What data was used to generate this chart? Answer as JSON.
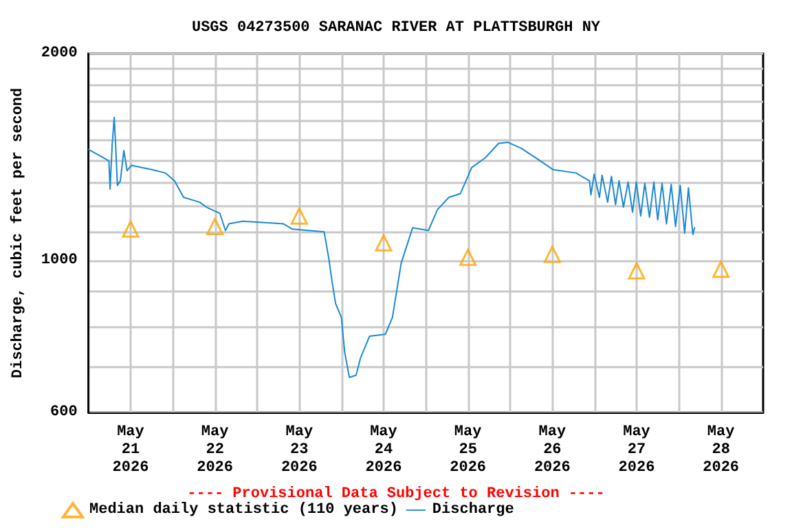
{
  "chart_data": {
    "type": "line",
    "title": "USGS 04273500 SARANAC RIVER AT PLATTSBURGH NY",
    "ylabel": "Discharge, cubic feet per second",
    "annotations": [
      "---- Provisional Data Subject to Revision ----"
    ],
    "log": "y",
    "grid": true,
    "legend": "bottom",
    "xlim": [
      "2026-05-21T00:00",
      "2026-05-29T00:00"
    ],
    "xticks": [
      {
        "value": "2026-05-21T12:00",
        "label": "May\n21\n2026"
      },
      {
        "value": "2026-05-22T00:00",
        "label": null
      },
      {
        "value": "2026-05-22T12:00",
        "label": "May\n22\n2026"
      },
      {
        "value": "2026-05-23T00:00",
        "label": null
      },
      {
        "value": "2026-05-23T12:00",
        "label": "May\n23\n2026"
      },
      {
        "value": "2026-05-24T00:00",
        "label": null
      },
      {
        "value": "2026-05-24T12:00",
        "label": "May\n24\n2026"
      },
      {
        "value": "2026-05-25T00:00",
        "label": null
      },
      {
        "value": "2026-05-25T12:00",
        "label": "May\n25\n2026"
      },
      {
        "value": "2026-05-26T00:00",
        "label": null
      },
      {
        "value": "2026-05-26T12:00",
        "label": "May\n26\n2026"
      },
      {
        "value": "2026-05-27T00:00",
        "label": null
      },
      {
        "value": "2026-05-27T12:00",
        "label": "May\n27\n2026"
      },
      {
        "value": "2026-05-28T00:00",
        "label": null
      },
      {
        "value": "2026-05-28T12:00",
        "label": "May\n28\n2026"
      }
    ],
    "ylim": [
      600,
      2000
    ],
    "yticks": [
      600,
      {
        "value": 700,
        "label": null
      },
      {
        "value": 800,
        "label": null
      },
      {
        "value": 900,
        "label": null
      },
      1000,
      {
        "value": 1100,
        "label": null
      },
      {
        "value": 1200,
        "label": null
      },
      {
        "value": 1300,
        "label": null
      },
      {
        "value": 1400,
        "label": null
      },
      {
        "value": 1500,
        "label": null
      },
      {
        "value": 1600,
        "label": null
      },
      {
        "value": 1700,
        "label": null
      },
      {
        "value": 1800,
        "label": null
      },
      {
        "value": 1900,
        "label": null
      },
      2000
    ],
    "series": [
      {
        "name": "Median daily statistic (110 years)",
        "type": "scatter",
        "marker": "triangle",
        "color": "#ffa500",
        "x": [
          "2026-05-21T12:00",
          "2026-05-22T12:00",
          "2026-05-23T12:00",
          "2026-05-24T12:00",
          "2026-05-25T12:00",
          "2026-05-26T12:00",
          "2026-05-27T12:00",
          "2026-05-28T12:00"
        ],
        "values": [
          1110,
          1120,
          1160,
          1060,
          1010,
          1020,
          965,
          970
        ]
      },
      {
        "name": "Discharge",
        "marker": "none",
        "color": "#1a8ad4",
        "x": [
          "2026-05-21T00:00",
          "2026-05-21T03:50",
          "2026-05-21T05:50",
          "2026-05-21T06:10",
          "2026-05-21T06:45",
          "2026-05-21T07:20",
          "2026-05-21T07:45",
          "2026-05-21T08:15",
          "2026-05-21T09:05",
          "2026-05-21T10:05",
          "2026-05-21T11:00",
          "2026-05-21T12:15",
          "2026-05-21T18:05",
          "2026-05-21T21:55",
          "2026-05-22T00:30",
          "2026-05-22T03:05",
          "2026-05-22T07:40",
          "2026-05-22T09:35",
          "2026-05-22T13:25",
          "2026-05-22T15:00",
          "2026-05-22T16:00",
          "2026-05-22T19:55",
          "2026-05-23T07:30",
          "2026-05-23T10:05",
          "2026-05-23T19:05",
          "2026-05-23T20:25",
          "2026-05-23T21:25",
          "2026-05-23T22:20",
          "2026-05-24T00:00",
          "2026-05-24T00:55",
          "2026-05-24T02:15",
          "2026-05-24T04:10",
          "2026-05-24T05:25",
          "2026-05-24T08:00",
          "2026-05-24T12:30",
          "2026-05-24T14:30",
          "2026-05-24T17:00",
          "2026-05-24T20:15",
          "2026-05-25T00:45",
          "2026-05-25T03:20",
          "2026-05-25T06:35",
          "2026-05-25T09:50",
          "2026-05-25T13:05",
          "2026-05-25T16:55",
          "2026-05-25T20:45",
          "2026-05-25T23:25",
          "2026-05-26T03:15",
          "2026-05-26T07:45",
          "2026-05-26T12:15",
          "2026-05-26T18:45",
          "2026-05-26T22:35",
          "2026-05-26T23:00",
          "2026-05-26T23:55",
          "2026-05-27T01:25",
          "2026-05-27T02:10",
          "2026-05-27T03:45",
          "2026-05-27T04:50",
          "2026-05-27T06:00",
          "2026-05-27T07:00",
          "2026-05-27T08:15",
          "2026-05-27T09:35",
          "2026-05-27T10:50",
          "2026-05-27T11:55",
          "2026-05-27T13:10",
          "2026-05-27T14:20",
          "2026-05-27T15:40",
          "2026-05-27T16:55",
          "2026-05-27T18:00",
          "2026-05-27T19:15",
          "2026-05-27T20:30",
          "2026-05-27T21:50",
          "2026-05-27T23:05",
          "2026-05-28T00:25",
          "2026-05-28T01:40",
          "2026-05-28T02:45",
          "2026-05-28T04:00",
          "2026-05-28T04:30"
        ],
        "values": [
          1450,
          1415,
          1395,
          1270,
          1470,
          1615,
          1470,
          1285,
          1305,
          1445,
          1350,
          1375,
          1355,
          1340,
          1305,
          1235,
          1215,
          1195,
          1170,
          1105,
          1130,
          1140,
          1130,
          1110,
          1100,
          1005,
          925,
          865,
          825,
          735,
          675,
          680,
          720,
          775,
          780,
          825,
          990,
          1115,
          1105,
          1185,
          1235,
          1250,
          1365,
          1410,
          1480,
          1485,
          1455,
          1405,
          1355,
          1340,
          1305,
          1245,
          1335,
          1235,
          1330,
          1215,
          1325,
          1205,
          1305,
          1195,
          1300,
          1175,
          1300,
          1160,
          1295,
          1155,
          1300,
          1145,
          1295,
          1130,
          1290,
          1120,
          1285,
          1095,
          1275,
          1090,
          1115
        ]
      }
    ]
  }
}
